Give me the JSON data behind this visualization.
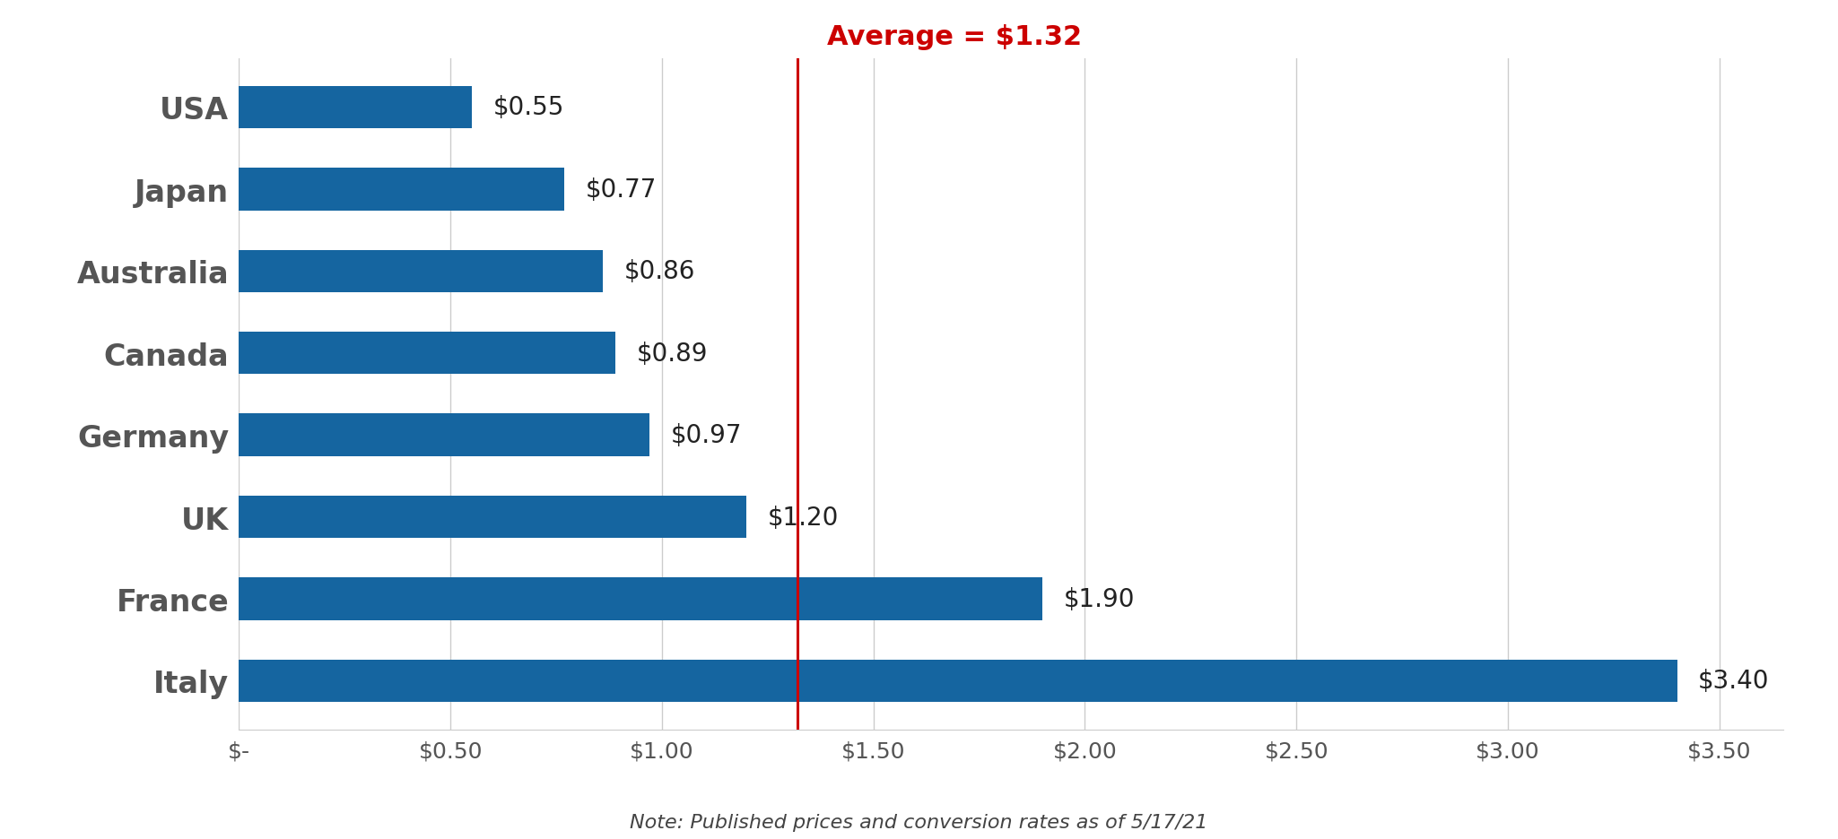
{
  "countries": [
    "USA",
    "Japan",
    "Australia",
    "Canada",
    "Germany",
    "UK",
    "France",
    "Italy"
  ],
  "values": [
    0.55,
    0.77,
    0.86,
    0.89,
    0.97,
    1.2,
    1.9,
    3.4
  ],
  "labels": [
    "$0.55",
    "$0.77",
    "$0.86",
    "$0.89",
    "$0.97",
    "$1.20",
    "$1.90",
    "$3.40"
  ],
  "bar_color": "#1565a0",
  "average": 1.32,
  "average_label": "Average = $1.32",
  "average_line_color": "#cc0000",
  "xlim": [
    0,
    3.65
  ],
  "xticks": [
    0,
    0.5,
    1.0,
    1.5,
    2.0,
    2.5,
    3.0,
    3.5
  ],
  "xtick_labels": [
    "$-",
    "$0.50",
    "$1.00",
    "$1.50",
    "$2.00",
    "$2.50",
    "$3.00",
    "$3.50"
  ],
  "note": "Note: Published prices and conversion rates as of 5/17/21",
  "background_color": "#ffffff",
  "bar_height": 0.52,
  "label_fontsize": 20,
  "tick_fontsize": 18,
  "note_fontsize": 16,
  "avg_label_fontsize": 22,
  "ytick_fontsize": 24,
  "grid_color": "#cccccc",
  "label_color": "#222222",
  "ytick_color": "#555555"
}
